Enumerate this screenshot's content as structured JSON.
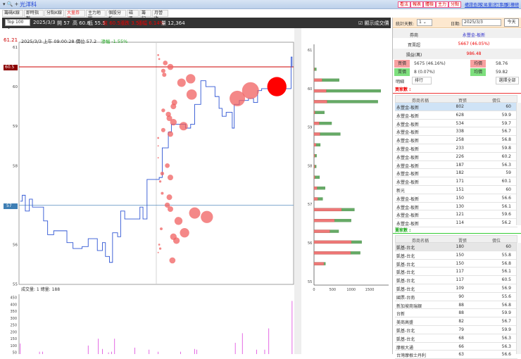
{
  "app": {
    "tool_icons": "▾ 🔍 +",
    "symbol": "光洋科"
  },
  "top_buttons": [
    "看法",
    "報表",
    "體檢",
    "主力",
    "分點"
  ],
  "top_links": [
    "權證查詢",
    "交易量比",
    "行事曆",
    "彩樓總表"
  ],
  "tabs": [
    {
      "label": "籌碼K線"
    },
    {
      "label": "即時指數"
    },
    {
      "label": "分點K線"
    },
    {
      "label": "大量券商",
      "active": true
    },
    {
      "label": "主力地圖"
    },
    {
      "label": "個股分析"
    },
    {
      "label": "磁區"
    },
    {
      "label": "籌記"
    },
    {
      "label": "月營收"
    }
  ],
  "infobar": {
    "select": "Top 100",
    "date": "2025/3/3",
    "open": "開 57",
    "high": "高 60.8",
    "low": "低 55.5",
    "close": "收 60.5",
    "change": "漲跌 3.5",
    "pct": "漲幅 6.14%",
    "volume": "量 12,364",
    "show_price_label": "顯示成交價",
    "show_price_checked": true
  },
  "chart_header": {
    "price_label": "61.21",
    "cursor_text": "2025/3/3 上午 09:00:28 價位 57.2",
    "cursor_change": "漲幅 -1.55%",
    "tag_high": "60.5",
    "tag_ref": "57"
  },
  "volume_header": "成交量: 1  總量: 188",
  "right": {
    "days_label": "統計天數:",
    "days_value": "1",
    "date_label": "日期:",
    "date_value": "2025/3/3",
    "today_btn": "今天",
    "broker_label": "券商",
    "broker_value": "永豐金-板新",
    "net_label": "買賣超",
    "net_value": "5667 (46.05%)",
    "pnl_label": "損益(萬)",
    "pnl_value": "986.48",
    "buy_label": "買價",
    "buy_value": "5675 (46.16%)",
    "buy_avg_label": "均價",
    "buy_avg": "58.76",
    "sell_label": "賣價",
    "sell_value": "8 (0.07%)",
    "sell_avg_label": "均價",
    "sell_avg": "59.82",
    "detail_label": "明細",
    "rank_btn": "排行",
    "select_all_btn": "選擇全部",
    "buyers_label": "買家數 :",
    "sellers_label": "賣家數 :",
    "buy_cols": [
      "券商名稱",
      "買張",
      "價位"
    ],
    "sell_cols": [
      "券商名稱",
      "賣張",
      "價位"
    ],
    "buy_rows": [
      [
        "永豐金-板新",
        "802",
        "60"
      ],
      [
        "永豐金-板新",
        "628",
        "59.9"
      ],
      [
        "永豐金-板新",
        "534",
        "59.7"
      ],
      [
        "永豐金-板新",
        "338",
        "56.7"
      ],
      [
        "永豐金-板新",
        "258",
        "56.8"
      ],
      [
        "永豐金-板新",
        "233",
        "59.8"
      ],
      [
        "永豐金-板新",
        "226",
        "60.2"
      ],
      [
        "永豐金-板新",
        "187",
        "56.3"
      ],
      [
        "永豐金-板新",
        "182",
        "59"
      ],
      [
        "永豐金-板新",
        "171",
        "60.1"
      ],
      [
        "新光",
        "151",
        "60"
      ],
      [
        "永豐金-板新",
        "150",
        "56.6"
      ],
      [
        "永豐金-板新",
        "130",
        "56.1"
      ],
      [
        "永豐金-板新",
        "121",
        "59.6"
      ],
      [
        "永豐金-板新",
        "114",
        "56.2"
      ]
    ],
    "sell_rows": [
      [
        "凱基-台北",
        "180",
        "60"
      ],
      [
        "凱基-台北",
        "150",
        "55.8"
      ],
      [
        "凱基-台北",
        "150",
        "56.8"
      ],
      [
        "凱基-台北",
        "117",
        "56.1"
      ],
      [
        "凱基-台北",
        "117",
        "60.5"
      ],
      [
        "凱基-台北",
        "109",
        "56.9"
      ],
      [
        "國票-台南",
        "90",
        "55.6"
      ],
      [
        "新加坡商瑞銀",
        "88",
        "56.8"
      ],
      [
        "台新",
        "88",
        "59.9"
      ],
      [
        "美商高盛",
        "82",
        "56.7"
      ],
      [
        "凱基-台北",
        "79",
        "59.9"
      ],
      [
        "凱基-台北",
        "68",
        "56.3"
      ],
      [
        "摩根大通",
        "66",
        "56.3"
      ],
      [
        "台灣摩根士丹利",
        "63",
        "56.6"
      ]
    ]
  },
  "colors": {
    "price_line": "#2f55d4",
    "bubble": "#f06060",
    "bubble_selected": "#ff0000",
    "buy_bar": "#ee7777",
    "sell_bar": "#66aa66",
    "high_line": "#cc0000",
    "ref_line": "#5a8fc0",
    "volume_bar": "#dd44dd"
  },
  "chart_data": [
    {
      "type": "line",
      "name": "price",
      "yticks": [
        55,
        56,
        57,
        58,
        59,
        60,
        61
      ],
      "ylim": [
        55,
        61
      ],
      "xlim": [
        "09:00",
        "13:30"
      ],
      "reference_lines": [
        60.5,
        57
      ],
      "points": [
        [
          "09:01",
          57.1
        ],
        [
          "09:03",
          57.25
        ],
        [
          "09:06",
          56.85
        ],
        [
          "09:10",
          57.15
        ],
        [
          "09:13",
          56.95
        ],
        [
          "09:19",
          56.95
        ],
        [
          "09:24",
          56.6
        ],
        [
          "09:28",
          56.25
        ],
        [
          "09:34",
          56.35
        ],
        [
          "09:42",
          56.35
        ],
        [
          "09:47",
          56.05
        ],
        [
          "09:53",
          55.9
        ],
        [
          "10:02",
          55.95
        ],
        [
          "10:08",
          56.15
        ],
        [
          "10:13",
          56.15
        ],
        [
          "10:17",
          55.85
        ],
        [
          "10:22",
          56.05
        ],
        [
          "10:25",
          55.7
        ],
        [
          "10:29",
          55.55
        ],
        [
          "10:32",
          56.3
        ],
        [
          "10:37",
          56.2
        ],
        [
          "10:40",
          56.85
        ],
        [
          "10:44",
          56.65
        ],
        [
          "10:57",
          56.65
        ],
        [
          "10:59",
          56.95
        ],
        [
          "11:02",
          56.65
        ],
        [
          "11:06",
          57.65
        ],
        [
          "11:18",
          57.7
        ],
        [
          "11:21",
          58.45
        ],
        [
          "11:27",
          58.85
        ],
        [
          "11:30",
          59.05
        ],
        [
          "11:39",
          59.05
        ],
        [
          "11:44",
          58.95
        ],
        [
          "11:49",
          59.05
        ],
        [
          "11:53",
          59.55
        ],
        [
          "11:59",
          60.15
        ],
        [
          "12:04",
          60.0
        ],
        [
          "12:09",
          60.0
        ],
        [
          "12:13",
          59.75
        ],
        [
          "12:17",
          59.45
        ],
        [
          "12:20",
          59.25
        ],
        [
          "12:24",
          59.35
        ],
        [
          "12:30",
          58.95
        ],
        [
          "12:32",
          59.55
        ],
        [
          "12:37",
          59.65
        ],
        [
          "12:46",
          59.7
        ],
        [
          "12:51",
          59.6
        ],
        [
          "12:55",
          59.9
        ],
        [
          "12:59",
          59.95
        ],
        [
          "13:05",
          59.95
        ],
        [
          "13:14",
          59.95
        ],
        [
          "13:24",
          59.95
        ],
        [
          "13:28",
          60.75
        ],
        [
          "13:29",
          60.5
        ]
      ],
      "bubbles": [
        [
          "11:17",
          60.8,
          8
        ],
        [
          "11:18",
          60.7,
          8
        ],
        [
          "11:24",
          60.6,
          48
        ],
        [
          "11:29",
          60.5,
          81
        ],
        [
          "11:22",
          60.4,
          39
        ],
        [
          "11:23",
          60.3,
          39
        ],
        [
          "11:40",
          60.1,
          155
        ],
        [
          "11:49",
          60.2,
          191
        ],
        [
          "11:50",
          59.8,
          231
        ],
        [
          "11:33",
          59.6,
          69
        ],
        [
          "11:32",
          59.5,
          69
        ],
        [
          "11:22",
          59.4,
          31
        ],
        [
          "11:27",
          59.3,
          58
        ],
        [
          "11:28",
          59.2,
          69
        ],
        [
          "11:32",
          59.1,
          93
        ],
        [
          "11:42",
          59.0,
          155
        ],
        [
          "11:22",
          58.9,
          39
        ],
        [
          "11:29",
          58.8,
          69
        ],
        [
          "11:17",
          58.7,
          8
        ],
        [
          "11:17",
          58.5,
          4
        ],
        [
          "11:17",
          58.2,
          4
        ],
        [
          "11:26",
          58.0,
          48
        ],
        [
          "11:21",
          57.8,
          31
        ],
        [
          "11:29",
          57.7,
          69
        ],
        [
          "11:19",
          57.6,
          12
        ],
        [
          "11:21",
          57.3,
          17
        ],
        [
          "11:28",
          57.2,
          69
        ],
        [
          "11:26",
          57.0,
          58
        ],
        [
          "11:29",
          56.9,
          69
        ],
        [
          "11:53",
          56.8,
          275
        ],
        [
          "12:05",
          56.7,
          322
        ],
        [
          "11:37",
          56.6,
          138
        ],
        [
          "11:20",
          56.4,
          17
        ],
        [
          "11:43",
          56.3,
          191
        ],
        [
          "11:32",
          56.2,
          93
        ],
        [
          "11:35",
          56.1,
          93
        ],
        [
          "11:18",
          56.0,
          8
        ],
        [
          "11:19",
          55.9,
          12
        ],
        [
          "11:17",
          55.8,
          4
        ],
        [
          "11:31",
          55.6,
          81
        ],
        [
          "12:35",
          59.7,
          520
        ],
        [
          "12:48",
          59.9,
          618
        ],
        [
          "13:14",
          60.0,
          802,
          true
        ]
      ]
    },
    {
      "type": "bar",
      "orientation": "horizontal",
      "name": "price distribution",
      "xticks": [
        0,
        500,
        1000,
        1500
      ],
      "yticks": [
        55,
        56,
        57,
        58,
        59,
        60,
        61
      ],
      "ylim": [
        55,
        61
      ],
      "prices": [
        60.5,
        60.22,
        59.94,
        59.66,
        59.38,
        59.1,
        58.82,
        58.54,
        58.26,
        57.98,
        57.7,
        57.42,
        57.14,
        56.86,
        56.58,
        56.3,
        56.02,
        55.74,
        55.46
      ],
      "buy": [
        5,
        215,
        330,
        350,
        25,
        140,
        160,
        55,
        20,
        20,
        25,
        80,
        100,
        740,
        550,
        425,
        1005,
        985,
        265
      ],
      "total": [
        65,
        680,
        1800,
        1720,
        280,
        475,
        710,
        170,
        70,
        60,
        150,
        300,
        235,
        1090,
        1000,
        665,
        1285,
        1245,
        310
      ]
    },
    {
      "type": "bar",
      "name": "volume",
      "yticks": [
        50,
        100,
        150,
        200,
        250,
        300,
        350,
        400,
        450
      ],
      "points": [
        [
          "09:01",
          115
        ],
        [
          "09:20",
          55
        ],
        [
          "09:23",
          55
        ],
        [
          "10:08",
          100
        ],
        [
          "10:18",
          150
        ],
        [
          "10:22",
          75
        ],
        [
          "10:28",
          50
        ],
        [
          "10:31",
          55
        ],
        [
          "10:34",
          150
        ],
        [
          "10:54",
          85
        ],
        [
          "11:08",
          70
        ],
        [
          "11:17",
          55
        ],
        [
          "11:39",
          55
        ],
        [
          "11:53",
          75
        ],
        [
          "11:55",
          70
        ],
        [
          "12:33",
          120
        ],
        [
          "12:40",
          190
        ],
        [
          "12:54",
          70
        ],
        [
          "13:02",
          70
        ],
        [
          "13:06",
          225
        ],
        [
          "13:29",
          425
        ]
      ]
    }
  ]
}
